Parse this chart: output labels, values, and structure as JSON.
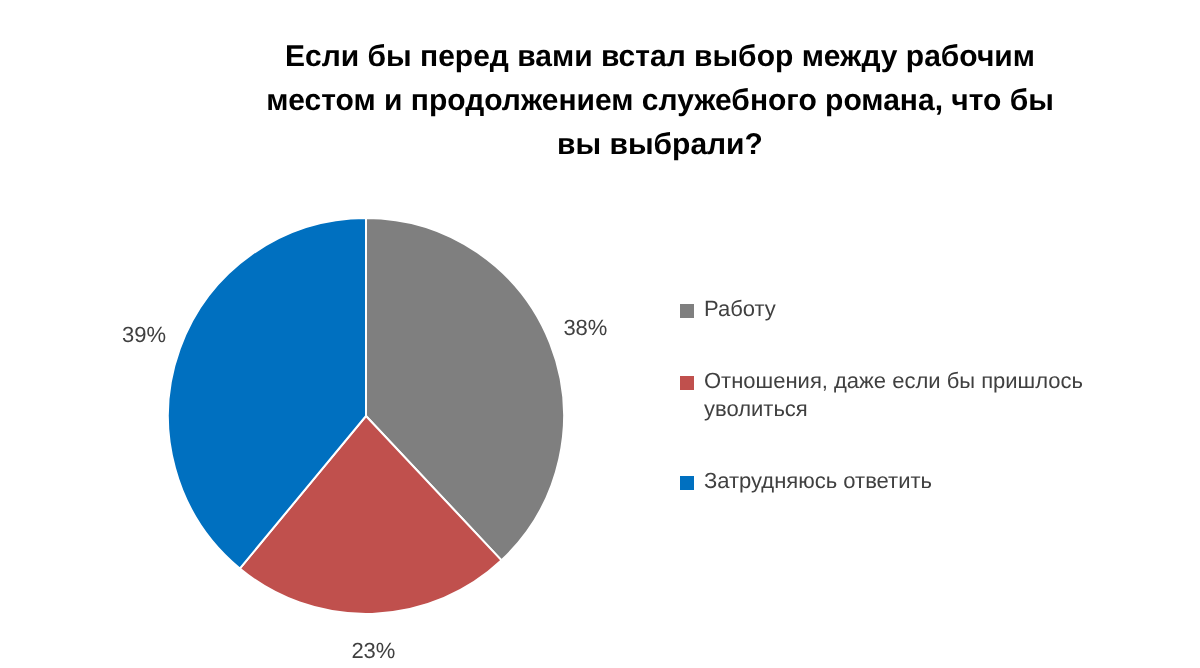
{
  "chart_data": {
    "type": "pie",
    "title": "Если бы перед вами встал выбор между рабочим местом и продолжением служебного романа, что бы вы выбрали?",
    "categories": [
      "Работу",
      "Отношения, даже если бы пришлось уволиться",
      "Затрудняюсь ответить"
    ],
    "values": [
      38,
      23,
      39
    ],
    "colors": [
      "#7f7f7f",
      "#c0504d",
      "#0070c0"
    ],
    "value_labels": [
      "38%",
      "23%",
      "39%"
    ],
    "legend": "right"
  }
}
